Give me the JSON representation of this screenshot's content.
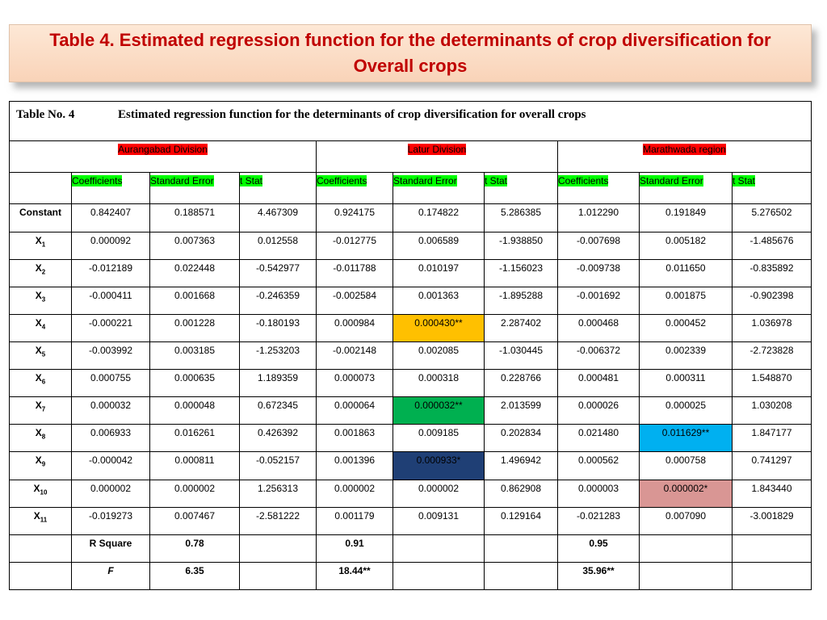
{
  "banner": {
    "title": "Table 4. Estimated regression function for the determinants of crop diversification for Overall crops"
  },
  "table": {
    "caption_no": "Table No.  4",
    "caption_text": "Estimated regression function for the determinants of crop diversification for overall crops",
    "divisions": [
      "Aurangabad Division",
      "Latur Division",
      "Marathwada region"
    ],
    "col_headers": [
      "Coefficients",
      "Standard Error",
      "t Stat",
      "Coefficients",
      "Standard Error",
      "t Stat",
      "Coefficients",
      "Standard Error",
      "t Stat"
    ],
    "rows": [
      {
        "label": "Constant",
        "sub": "",
        "values": [
          "0.842407",
          "0.188571",
          "4.467309",
          "0.924175",
          "0.174822",
          "5.286385",
          "1.012290",
          "0.191849",
          "5.276502"
        ]
      },
      {
        "label": "X",
        "sub": "1",
        "values": [
          "0.000092",
          "0.007363",
          "0.012558",
          "-0.012775",
          "0.006589",
          "-1.938850",
          "-0.007698",
          "0.005182",
          "-1.485676"
        ]
      },
      {
        "label": "X",
        "sub": "2",
        "values": [
          "-0.012189",
          "0.022448",
          "-0.542977",
          "-0.011788",
          "0.010197",
          "-1.156023",
          "-0.009738",
          "0.011650",
          "-0.835892"
        ]
      },
      {
        "label": "X",
        "sub": "3",
        "values": [
          "-0.000411",
          "0.001668",
          "-0.246359",
          "-0.002584",
          "0.001363",
          "-1.895288",
          "-0.001692",
          "0.001875",
          "-0.902398"
        ]
      },
      {
        "label": "X",
        "sub": "4",
        "values": [
          "-0.000221",
          "0.001228",
          "-0.180193",
          "0.000984",
          "0.000430**",
          "2.287402",
          "0.000468",
          "0.000452",
          "1.036978"
        ]
      },
      {
        "label": "X",
        "sub": "5",
        "values": [
          "-0.003992",
          "0.003185",
          "-1.253203",
          "-0.002148",
          "0.002085",
          "-1.030445",
          "-0.006372",
          "0.002339",
          "-2.723828"
        ]
      },
      {
        "label": "X",
        "sub": "6",
        "values": [
          "0.000755",
          "0.000635",
          "1.189359",
          "0.000073",
          "0.000318",
          "0.228766",
          "0.000481",
          "0.000311",
          "1.548870"
        ]
      },
      {
        "label": "X",
        "sub": "7",
        "values": [
          "0.000032",
          "0.000048",
          "0.672345",
          "0.000064",
          "0.000032**",
          "2.013599",
          "0.000026",
          "0.000025",
          "1.030208"
        ]
      },
      {
        "label": "X",
        "sub": "8",
        "values": [
          "0.006933",
          "0.016261",
          "0.426392",
          "0.001863",
          "0.009185",
          "0.202834",
          "0.021480",
          "0.011629**",
          "1.847177"
        ]
      },
      {
        "label": "X",
        "sub": "9",
        "values": [
          "-0.000042",
          "0.000811",
          "-0.052157",
          "0.001396",
          "0.000933*",
          "1.496942",
          "0.000562",
          "0.000758",
          "0.741297"
        ]
      },
      {
        "label": "X",
        "sub": "10",
        "values": [
          "0.000002",
          "0.000002",
          "1.256313",
          "0.000002",
          "0.000002",
          "0.862908",
          "0.000003",
          "0.000002*",
          "1.843440"
        ]
      },
      {
        "label": "X",
        "sub": "11",
        "values": [
          "-0.019273",
          "0.007467",
          "-2.581222",
          "0.001179",
          "0.009131",
          "0.129164",
          "-0.021283",
          "0.007090",
          "-3.001829"
        ]
      }
    ],
    "rsquare": {
      "label": "R Square",
      "values": [
        "0.78",
        "0.91",
        "0.95"
      ]
    },
    "f": {
      "label": "F",
      "values": [
        "6.35",
        "18.44**",
        "35.96**"
      ]
    },
    "highlight_colors": {
      "orange": "#ffc000",
      "green": "#00b050",
      "navy": "#1f3f75",
      "cyan": "#00b0f0",
      "pink": "#d99694"
    }
  }
}
